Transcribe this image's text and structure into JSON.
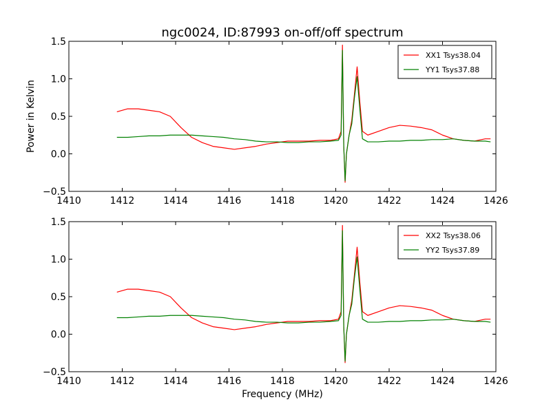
{
  "figure": {
    "title": "ngc0024, ID:87993 on-off/off spectrum",
    "xlabel": "Frequency (MHz)",
    "ylabel": "Power in Kelvin"
  },
  "chart_data": [
    {
      "type": "line",
      "title": "ngc0024, ID:87993 on-off/off spectrum",
      "xlabel": "",
      "ylabel": "Power in Kelvin",
      "xlim": [
        1410,
        1426
      ],
      "ylim": [
        -0.5,
        1.5
      ],
      "xticks": [
        "1410",
        "1412",
        "1414",
        "1416",
        "1418",
        "1420",
        "1422",
        "1424",
        "1426"
      ],
      "yticks": [
        "−0.5",
        "0.0",
        "0.5",
        "1.0",
        "1.5"
      ],
      "grid": false,
      "legend_position": "top-right",
      "series": [
        {
          "name": "XX1 Tsys38.04",
          "color": "#ff0000",
          "x": [
            1411.8,
            1412.2,
            1412.6,
            1413.0,
            1413.4,
            1413.8,
            1414.2,
            1414.6,
            1415.0,
            1415.4,
            1415.8,
            1416.2,
            1416.6,
            1417.0,
            1417.4,
            1417.8,
            1418.2,
            1418.6,
            1419.0,
            1419.4,
            1419.8,
            1420.1,
            1420.2,
            1420.25,
            1420.3,
            1420.35,
            1420.4,
            1420.5,
            1420.6,
            1420.7,
            1420.8,
            1420.9,
            1421.0,
            1421.2,
            1421.6,
            1422.0,
            1422.4,
            1422.8,
            1423.2,
            1423.6,
            1424.0,
            1424.4,
            1424.8,
            1425.2,
            1425.6,
            1425.8
          ],
          "y": [
            0.56,
            0.6,
            0.6,
            0.58,
            0.56,
            0.5,
            0.35,
            0.22,
            0.15,
            0.1,
            0.08,
            0.06,
            0.08,
            0.1,
            0.13,
            0.15,
            0.17,
            0.17,
            0.17,
            0.18,
            0.18,
            0.2,
            0.3,
            1.45,
            0.1,
            -0.38,
            0.0,
            0.25,
            0.45,
            0.8,
            1.16,
            0.7,
            0.3,
            0.25,
            0.3,
            0.35,
            0.38,
            0.37,
            0.35,
            0.32,
            0.25,
            0.2,
            0.18,
            0.17,
            0.2,
            0.2
          ]
        },
        {
          "name": "YY1 Tsys37.88",
          "color": "#008000",
          "x": [
            1411.8,
            1412.2,
            1412.6,
            1413.0,
            1413.4,
            1413.8,
            1414.2,
            1414.6,
            1415.0,
            1415.4,
            1415.8,
            1416.2,
            1416.6,
            1417.0,
            1417.4,
            1417.8,
            1418.2,
            1418.6,
            1419.0,
            1419.4,
            1419.8,
            1420.1,
            1420.2,
            1420.25,
            1420.3,
            1420.35,
            1420.4,
            1420.5,
            1420.6,
            1420.7,
            1420.8,
            1420.9,
            1421.0,
            1421.2,
            1421.6,
            1422.0,
            1422.4,
            1422.8,
            1423.2,
            1423.6,
            1424.0,
            1424.4,
            1424.8,
            1425.2,
            1425.6,
            1425.8
          ],
          "y": [
            0.22,
            0.22,
            0.23,
            0.24,
            0.24,
            0.25,
            0.25,
            0.25,
            0.24,
            0.23,
            0.22,
            0.2,
            0.19,
            0.17,
            0.16,
            0.16,
            0.15,
            0.15,
            0.16,
            0.16,
            0.17,
            0.18,
            0.25,
            1.38,
            0.1,
            -0.36,
            0.0,
            0.25,
            0.4,
            0.75,
            1.03,
            0.6,
            0.2,
            0.16,
            0.16,
            0.17,
            0.17,
            0.18,
            0.18,
            0.19,
            0.19,
            0.2,
            0.18,
            0.17,
            0.17,
            0.16
          ]
        }
      ]
    },
    {
      "type": "line",
      "title": "",
      "xlabel": "Frequency (MHz)",
      "ylabel": "",
      "xlim": [
        1410,
        1426
      ],
      "ylim": [
        -0.5,
        1.5
      ],
      "xticks": [
        "1410",
        "1412",
        "1414",
        "1416",
        "1418",
        "1420",
        "1422",
        "1424",
        "1426"
      ],
      "yticks": [
        "−0.5",
        "0.0",
        "0.5",
        "1.0",
        "1.5"
      ],
      "grid": false,
      "legend_position": "top-right",
      "series": [
        {
          "name": "XX2 Tsys38.06",
          "color": "#ff0000",
          "x": [
            1411.8,
            1412.2,
            1412.6,
            1413.0,
            1413.4,
            1413.8,
            1414.2,
            1414.6,
            1415.0,
            1415.4,
            1415.8,
            1416.2,
            1416.6,
            1417.0,
            1417.4,
            1417.8,
            1418.2,
            1418.6,
            1419.0,
            1419.4,
            1419.8,
            1420.1,
            1420.2,
            1420.25,
            1420.3,
            1420.35,
            1420.4,
            1420.5,
            1420.6,
            1420.7,
            1420.8,
            1420.9,
            1421.0,
            1421.2,
            1421.6,
            1422.0,
            1422.4,
            1422.8,
            1423.2,
            1423.6,
            1424.0,
            1424.4,
            1424.8,
            1425.2,
            1425.6,
            1425.8
          ],
          "y": [
            0.56,
            0.6,
            0.6,
            0.58,
            0.56,
            0.5,
            0.35,
            0.22,
            0.15,
            0.1,
            0.08,
            0.06,
            0.08,
            0.1,
            0.13,
            0.15,
            0.17,
            0.17,
            0.17,
            0.18,
            0.18,
            0.2,
            0.3,
            1.45,
            0.1,
            -0.38,
            0.0,
            0.25,
            0.45,
            0.8,
            1.16,
            0.7,
            0.3,
            0.25,
            0.3,
            0.35,
            0.38,
            0.37,
            0.35,
            0.32,
            0.25,
            0.2,
            0.18,
            0.17,
            0.2,
            0.2
          ]
        },
        {
          "name": "YY2 Tsys37.89",
          "color": "#008000",
          "x": [
            1411.8,
            1412.2,
            1412.6,
            1413.0,
            1413.4,
            1413.8,
            1414.2,
            1414.6,
            1415.0,
            1415.4,
            1415.8,
            1416.2,
            1416.6,
            1417.0,
            1417.4,
            1417.8,
            1418.2,
            1418.6,
            1419.0,
            1419.4,
            1419.8,
            1420.1,
            1420.2,
            1420.25,
            1420.3,
            1420.35,
            1420.4,
            1420.5,
            1420.6,
            1420.7,
            1420.8,
            1420.9,
            1421.0,
            1421.2,
            1421.6,
            1422.0,
            1422.4,
            1422.8,
            1423.2,
            1423.6,
            1424.0,
            1424.4,
            1424.8,
            1425.2,
            1425.6,
            1425.8
          ],
          "y": [
            0.22,
            0.22,
            0.23,
            0.24,
            0.24,
            0.25,
            0.25,
            0.25,
            0.24,
            0.23,
            0.22,
            0.2,
            0.19,
            0.17,
            0.16,
            0.16,
            0.15,
            0.15,
            0.16,
            0.16,
            0.17,
            0.18,
            0.25,
            1.38,
            0.1,
            -0.36,
            0.0,
            0.25,
            0.4,
            0.75,
            1.03,
            0.6,
            0.2,
            0.16,
            0.16,
            0.17,
            0.17,
            0.18,
            0.18,
            0.19,
            0.19,
            0.2,
            0.18,
            0.17,
            0.17,
            0.16
          ]
        }
      ]
    }
  ]
}
